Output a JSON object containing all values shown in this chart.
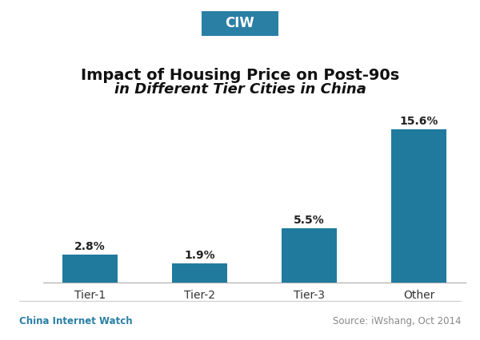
{
  "categories": [
    "Tier-1",
    "Tier-2",
    "Tier-3",
    "Other"
  ],
  "values": [
    2.8,
    1.9,
    5.5,
    15.6
  ],
  "labels": [
    "2.8%",
    "1.9%",
    "5.5%",
    "15.6%"
  ],
  "bar_color": "#1f7a9e",
  "title_line1": "Impact of Housing Price on Post-90s",
  "title_line2": "in Different Tier Cities in China",
  "footer_left": "China Internet Watch",
  "footer_right": "Source: iWshang, Oct 2014",
  "header_label": "CIW",
  "header_bg": "#2a7fa5",
  "header_text_color": "#ffffff",
  "footer_left_color": "#2a7fa5",
  "footer_right_color": "#888888",
  "background_color": "#ffffff",
  "ylim": [
    0,
    18
  ],
  "bar_width": 0.5,
  "label_fontsize": 10,
  "title_fontsize_line1": 14,
  "title_fontsize_line2": 13,
  "footer_fontsize": 8.5,
  "header_fontsize": 12,
  "xtick_fontsize": 10
}
